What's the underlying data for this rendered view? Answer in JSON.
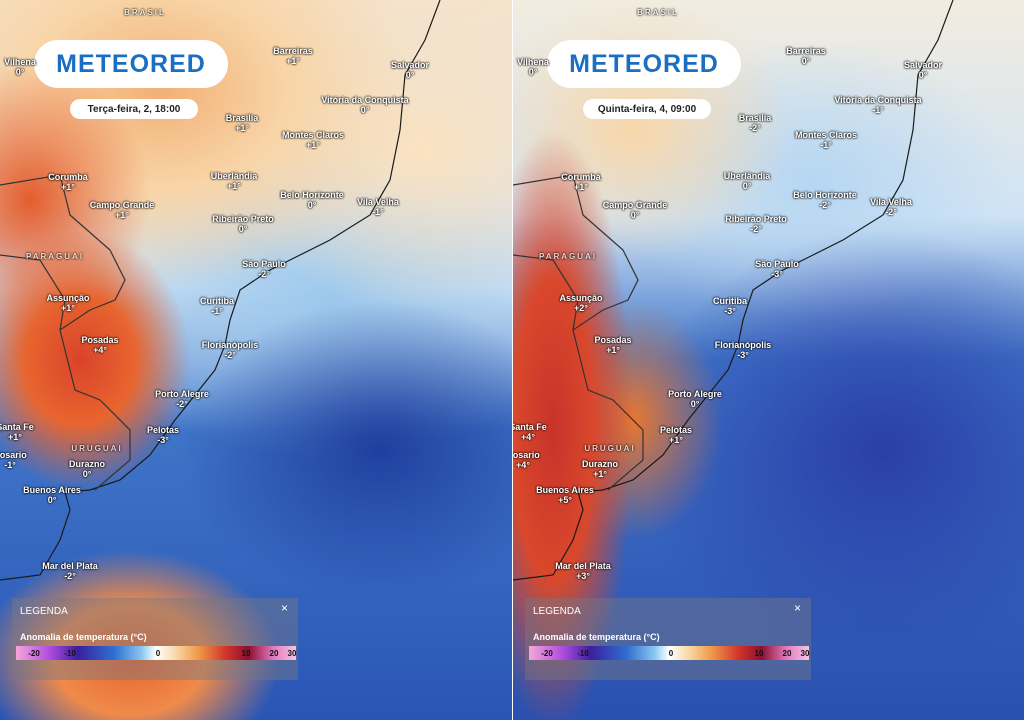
{
  "panels": [
    {
      "logo": "METEORED",
      "date": "Terça-feira, 2, 18:00",
      "countries": [
        "BRASIL",
        "PARAGUAI",
        "URUGUAI"
      ],
      "cities": [
        {
          "name": "Vilhena",
          "value": "0°"
        },
        {
          "name": "Barreiras",
          "value": "+1°"
        },
        {
          "name": "Salvador",
          "value": "0°"
        },
        {
          "name": "Vitória da Conquista",
          "value": "0°"
        },
        {
          "name": "Brasília",
          "value": "+1°"
        },
        {
          "name": "Montes Claros",
          "value": "+1°"
        },
        {
          "name": "Corumbá",
          "value": "+1°"
        },
        {
          "name": "Uberlândia",
          "value": "+1°"
        },
        {
          "name": "Campo Grande",
          "value": "+1°"
        },
        {
          "name": "Belo Horizonte",
          "value": "0°"
        },
        {
          "name": "Vila Velha",
          "value": "-1°"
        },
        {
          "name": "Ribeirão Preto",
          "value": "0°"
        },
        {
          "name": "São Paulo",
          "value": "-2°"
        },
        {
          "name": "Assunção",
          "value": "+1°"
        },
        {
          "name": "Curitiba",
          "value": "-1°"
        },
        {
          "name": "Posadas",
          "value": "+4°"
        },
        {
          "name": "Florianópolis",
          "value": "-2°"
        },
        {
          "name": "Porto Alegre",
          "value": "-2°"
        },
        {
          "name": "Pelotas",
          "value": "-3°"
        },
        {
          "name": "Santa Fe",
          "value": "+1°"
        },
        {
          "name": "Rosario",
          "value": "-1°"
        },
        {
          "name": "Durazno",
          "value": "0°"
        },
        {
          "name": "Buenos Aires",
          "value": "0°"
        },
        {
          "name": "Mar del Plata",
          "value": "-2°"
        }
      ],
      "legend": {
        "title": "LEGENDA",
        "close": "×",
        "subtitle": "Anomalia de temperatura (°C)",
        "scale": [
          "-20",
          "-10",
          "0",
          "10",
          "20",
          "30"
        ]
      }
    },
    {
      "logo": "METEORED",
      "date": "Quinta-feira, 4, 09:00",
      "countries": [
        "BRASIL",
        "PARAGUAI",
        "URUGUAI"
      ],
      "cities": [
        {
          "name": "Vilhena",
          "value": "0°"
        },
        {
          "name": "Barreiras",
          "value": "0°"
        },
        {
          "name": "Salvador",
          "value": "0°"
        },
        {
          "name": "Vitória da Conquista",
          "value": "-1°"
        },
        {
          "name": "Brasília",
          "value": "-2°"
        },
        {
          "name": "Montes Claros",
          "value": "-1°"
        },
        {
          "name": "Corumbá",
          "value": "+1°"
        },
        {
          "name": "Uberlândia",
          "value": "0°"
        },
        {
          "name": "Campo Grande",
          "value": "0°"
        },
        {
          "name": "Belo Horizonte",
          "value": "-2°"
        },
        {
          "name": "Vila Velha",
          "value": "-2°"
        },
        {
          "name": "Ribeirão Preto",
          "value": "-2°"
        },
        {
          "name": "São Paulo",
          "value": "-3°"
        },
        {
          "name": "Assunção",
          "value": "+2°"
        },
        {
          "name": "Curitiba",
          "value": "-3°"
        },
        {
          "name": "Posadas",
          "value": "+1°"
        },
        {
          "name": "Florianópolis",
          "value": "-3°"
        },
        {
          "name": "Porto Alegre",
          "value": "0°"
        },
        {
          "name": "Pelotas",
          "value": "+1°"
        },
        {
          "name": "Santa Fe",
          "value": "+4°"
        },
        {
          "name": "Rosario",
          "value": "+4°"
        },
        {
          "name": "Durazno",
          "value": "+1°"
        },
        {
          "name": "Buenos Aires",
          "value": "+5°"
        },
        {
          "name": "Mar del Plata",
          "value": "+3°"
        }
      ],
      "legend": {
        "title": "LEGENDA",
        "close": "×",
        "subtitle": "Anomalia de temperatura (°C)",
        "scale": [
          "-20",
          "-10",
          "0",
          "10",
          "20",
          "30"
        ]
      }
    }
  ]
}
